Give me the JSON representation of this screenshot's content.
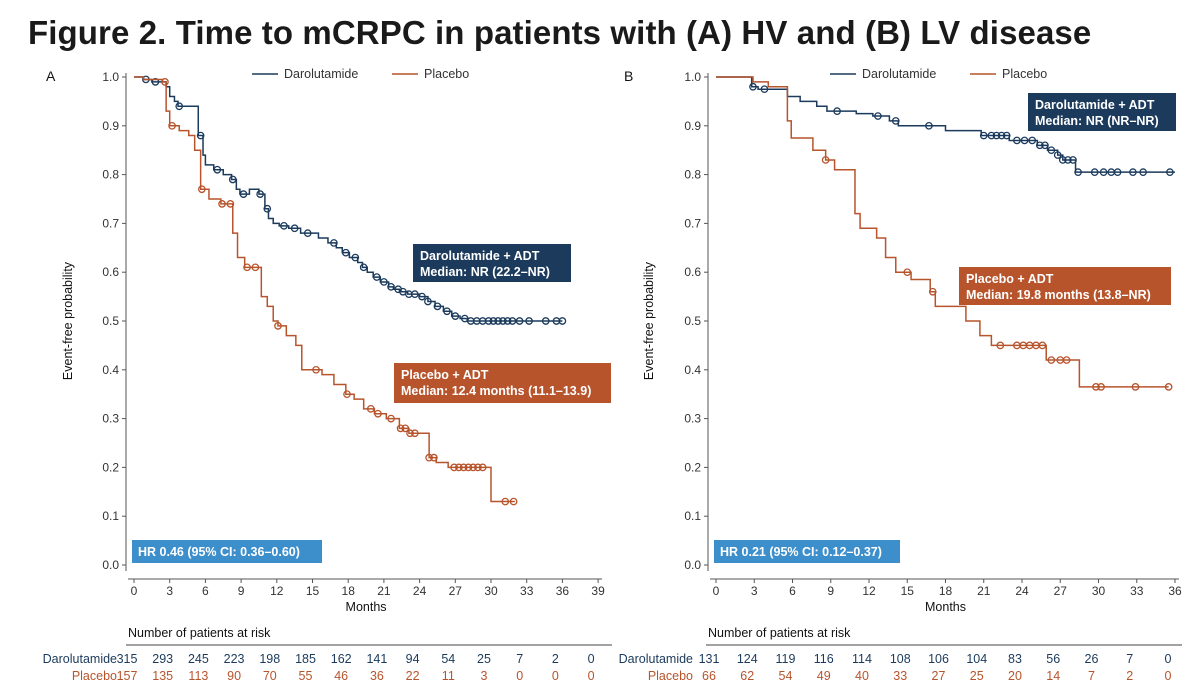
{
  "title": "Figure 2. Time to mCRPC in patients with (A) HV and (B) LV disease",
  "colors": {
    "darolutamide": "#1b3a5c",
    "placebo": "#b7542c",
    "hr_box": "#3d8fcc",
    "axis": "#555555"
  },
  "chart_data": [
    {
      "type": "line",
      "step": true,
      "panel_label": "A",
      "xlabel": "Months",
      "ylabel": "Event-free probability",
      "xlim": [
        0,
        39
      ],
      "ylim": [
        0,
        1.0
      ],
      "x_ticks": [
        0,
        3,
        6,
        9,
        12,
        15,
        18,
        21,
        24,
        27,
        30,
        33,
        36,
        39
      ],
      "y_ticks": [
        0.0,
        0.1,
        0.2,
        0.3,
        0.4,
        0.5,
        0.6,
        0.7,
        0.8,
        0.9,
        1.0
      ],
      "grid": false,
      "legend": {
        "position": "top",
        "entries": [
          "Darolutamide",
          "Placebo"
        ]
      },
      "series": [
        {
          "name": "Darolutamide",
          "color_key": "darolutamide",
          "x": [
            0,
            0.8,
            1.5,
            2.7,
            3.0,
            3.4,
            3.7,
            5.4,
            5.8,
            6.0,
            6.7,
            7.5,
            8.2,
            8.6,
            8.9,
            9.7,
            10.5,
            11.0,
            11.3,
            11.7,
            12.2,
            13.0,
            14.0,
            15.5,
            16.3,
            17.0,
            17.5,
            18.1,
            18.8,
            19.2,
            19.6,
            20.1,
            20.7,
            21.4,
            21.8,
            22.3,
            23.0,
            24.0,
            24.7,
            25.3,
            26.0,
            26.7,
            27.4,
            28.0,
            36.0
          ],
          "y": [
            1.0,
            0.995,
            0.99,
            0.98,
            0.96,
            0.95,
            0.94,
            0.88,
            0.84,
            0.82,
            0.81,
            0.8,
            0.79,
            0.77,
            0.76,
            0.77,
            0.76,
            0.73,
            0.71,
            0.7,
            0.695,
            0.69,
            0.68,
            0.67,
            0.66,
            0.65,
            0.64,
            0.63,
            0.62,
            0.61,
            0.6,
            0.59,
            0.58,
            0.57,
            0.565,
            0.56,
            0.555,
            0.55,
            0.54,
            0.53,
            0.52,
            0.51,
            0.505,
            0.5,
            0.5
          ],
          "censor_x": [
            1.0,
            1.8,
            3.8,
            5.6,
            7.0,
            8.3,
            9.2,
            10.6,
            11.2,
            12.6,
            13.5,
            14.6,
            16.8,
            17.8,
            18.6,
            19.3,
            20.4,
            21.0,
            21.6,
            22.2,
            22.6,
            23.1,
            23.6,
            24.2,
            24.7,
            25.5,
            26.3,
            27.0,
            27.8,
            28.3,
            28.8,
            29.3,
            29.8,
            30.2,
            30.6,
            31.0,
            31.4,
            31.8,
            32.4,
            33.2,
            34.6,
            35.5,
            36.0
          ]
        },
        {
          "name": "Placebo",
          "color_key": "placebo",
          "x": [
            0,
            0.8,
            2.4,
            2.7,
            3.0,
            3.8,
            4.6,
            5.1,
            5.6,
            6.3,
            7.3,
            8.3,
            8.7,
            9.3,
            10.2,
            10.7,
            11.2,
            11.7,
            12.1,
            12.8,
            13.6,
            14.1,
            15.8,
            16.8,
            17.8,
            18.5,
            19.3,
            20.2,
            21.2,
            22.3,
            23.1,
            24.8,
            25.4,
            26.4,
            30.0,
            32.0
          ],
          "y": [
            1.0,
            0.995,
            0.99,
            0.93,
            0.9,
            0.89,
            0.88,
            0.85,
            0.77,
            0.75,
            0.74,
            0.68,
            0.63,
            0.61,
            0.61,
            0.55,
            0.53,
            0.5,
            0.49,
            0.47,
            0.45,
            0.4,
            0.39,
            0.37,
            0.35,
            0.34,
            0.32,
            0.31,
            0.3,
            0.28,
            0.27,
            0.22,
            0.21,
            0.2,
            0.13,
            0.13
          ],
          "censor_x": [
            2.6,
            3.2,
            5.7,
            7.4,
            8.1,
            9.5,
            10.2,
            12.1,
            15.3,
            17.9,
            19.9,
            20.5,
            21.6,
            22.4,
            22.8,
            23.2,
            23.6,
            24.8,
            25.2,
            26.9,
            27.3,
            27.7,
            28.1,
            28.5,
            28.9,
            29.3,
            31.2,
            31.9
          ]
        }
      ],
      "annotations": [
        {
          "series": "Darolutamide",
          "line1": "Darolutamide + ADT",
          "line2": "Median: NR (22.2–NR)"
        },
        {
          "series": "Placebo",
          "line1": "Placebo + ADT",
          "line2": "Median: 12.4 months (11.1–13.9)"
        },
        {
          "series": "HR",
          "line1": "HR 0.46 (95% CI: 0.36–0.60)"
        }
      ],
      "risk_table": {
        "title": "Number of patients at risk",
        "rows": [
          {
            "label": "Darolutamide",
            "values": [
              315,
              293,
              245,
              223,
              198,
              185,
              162,
              141,
              94,
              54,
              25,
              7,
              2,
              0
            ]
          },
          {
            "label": "Placebo",
            "values": [
              157,
              135,
              113,
              90,
              70,
              55,
              46,
              36,
              22,
              11,
              3,
              0,
              0,
              0
            ]
          }
        ]
      }
    },
    {
      "type": "line",
      "step": true,
      "panel_label": "B",
      "xlabel": "Months",
      "ylabel": "Event-free probability",
      "xlim": [
        0,
        36
      ],
      "ylim": [
        0,
        1.0
      ],
      "x_ticks": [
        0,
        3,
        6,
        9,
        12,
        15,
        18,
        21,
        24,
        27,
        30,
        33,
        36
      ],
      "y_ticks": [
        0.0,
        0.1,
        0.2,
        0.3,
        0.4,
        0.5,
        0.6,
        0.7,
        0.8,
        0.9,
        1.0
      ],
      "grid": false,
      "legend": {
        "position": "top",
        "entries": [
          "Darolutamide",
          "Placebo"
        ]
      },
      "series": [
        {
          "name": "Darolutamide",
          "color_key": "darolutamide",
          "x": [
            0,
            2.8,
            3.3,
            5.6,
            6.6,
            7.9,
            8.7,
            11.0,
            12.3,
            13.6,
            14.3,
            18.0,
            20.8,
            23.0,
            25.2,
            26.0,
            26.8,
            27.2,
            28.2,
            36.0
          ],
          "y": [
            1.0,
            0.98,
            0.975,
            0.96,
            0.95,
            0.94,
            0.93,
            0.925,
            0.92,
            0.91,
            0.9,
            0.89,
            0.88,
            0.87,
            0.86,
            0.85,
            0.84,
            0.83,
            0.805,
            0.805
          ],
          "censor_x": [
            2.9,
            3.8,
            9.5,
            12.7,
            14.1,
            16.7,
            21.0,
            21.6,
            22.0,
            22.4,
            22.8,
            23.6,
            24.2,
            24.8,
            25.4,
            25.8,
            26.3,
            26.8,
            27.2,
            27.6,
            28.0,
            28.4,
            29.7,
            30.4,
            31.0,
            31.5,
            32.7,
            33.5,
            35.6
          ]
        },
        {
          "name": "Placebo",
          "color_key": "placebo",
          "x": [
            0,
            2.9,
            4.1,
            5.6,
            5.9,
            7.6,
            8.6,
            9.3,
            10.9,
            11.3,
            12.6,
            13.3,
            14.1,
            15.3,
            16.8,
            17.2,
            19.6,
            20.7,
            21.6,
            25.9,
            28.5,
            35.5
          ],
          "y": [
            1.0,
            0.99,
            0.98,
            0.91,
            0.875,
            0.85,
            0.83,
            0.81,
            0.72,
            0.69,
            0.67,
            0.63,
            0.6,
            0.585,
            0.56,
            0.53,
            0.5,
            0.47,
            0.45,
            0.42,
            0.365,
            0.365
          ],
          "censor_x": [
            8.6,
            15.0,
            17.0,
            22.3,
            23.6,
            24.1,
            24.6,
            25.1,
            25.6,
            26.3,
            27.0,
            27.5,
            29.8,
            30.2,
            32.9,
            35.5
          ]
        }
      ],
      "annotations": [
        {
          "series": "Darolutamide",
          "line1": "Darolutamide + ADT",
          "line2": "Median: NR (NR–NR)"
        },
        {
          "series": "Placebo",
          "line1": "Placebo + ADT",
          "line2": "Median: 19.8 months (13.8–NR)"
        },
        {
          "series": "HR",
          "line1": "HR 0.21 (95% CI: 0.12–0.37)"
        }
      ],
      "risk_table": {
        "title": "Number of patients at risk",
        "rows": [
          {
            "label": "Darolutamide",
            "values": [
              131,
              124,
              119,
              116,
              114,
              108,
              106,
              104,
              83,
              56,
              26,
              7,
              0
            ]
          },
          {
            "label": "Placebo",
            "values": [
              66,
              62,
              54,
              49,
              40,
              33,
              27,
              25,
              20,
              14,
              7,
              2,
              0
            ]
          }
        ]
      }
    }
  ]
}
